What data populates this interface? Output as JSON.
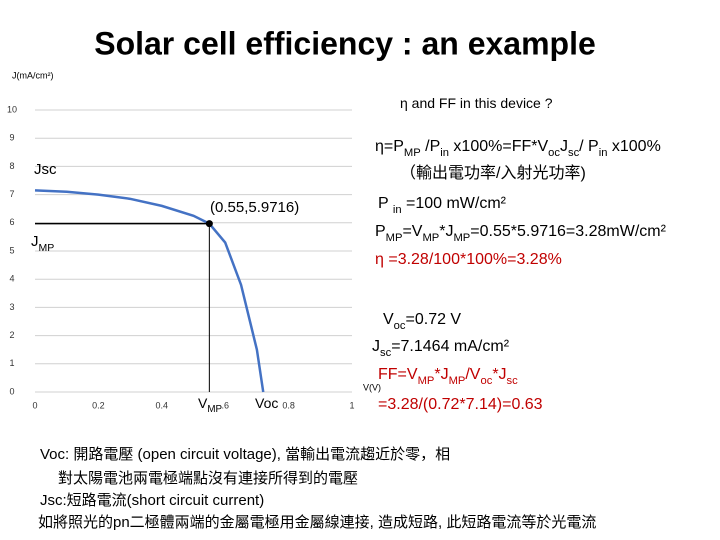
{
  "title": "Solar cell efficiency : an example",
  "chart_data": {
    "type": "line",
    "y_label": "J(mA/cm²)",
    "x_label": "V(V)",
    "xlim": [
      0,
      1
    ],
    "ylim": [
      0,
      10
    ],
    "xticks": [
      0,
      0.2,
      0.4,
      {
        "value": 0.6,
        "label": ".6"
      },
      {
        "value": 0.8,
        "label": "0.8"
      },
      1
    ],
    "yticks": [
      0,
      1,
      2,
      3,
      4,
      5,
      6,
      7,
      8,
      9,
      10
    ],
    "grid": true,
    "series": [
      {
        "color": "#4472c4",
        "x": [
          0,
          0.1,
          0.2,
          0.3,
          0.4,
          0.5,
          0.55,
          0.6,
          0.65,
          0.7,
          0.72
        ],
        "values": [
          7.15,
          7.1,
          7.0,
          6.85,
          6.6,
          6.25,
          5.97,
          5.3,
          3.8,
          1.5,
          0
        ]
      }
    ],
    "point": {
      "x": 0.55,
      "y": 5.9716,
      "label": "(0.55,5.9716)"
    },
    "annotations": {
      "jsc": [
        {
          "text": "Jsc"
        }
      ],
      "jmp": [
        {
          "text": "J"
        },
        {
          "text": "MP",
          "sub": true
        }
      ],
      "vmp": [
        {
          "text": "V"
        },
        {
          "text": "MP",
          "sub": true
        }
      ],
      "voc": [
        {
          "text": "Voc"
        }
      ]
    }
  },
  "text_block": {
    "lines": [
      {
        "color": "#000000",
        "segments": [
          {
            "text": "η and FF in this device ?"
          }
        ]
      },
      {
        "color": "#000000",
        "segments": [
          {
            "text": "η=P"
          },
          {
            "text": "MP",
            "sub": true
          },
          {
            "text": " /P"
          },
          {
            "text": "in",
            "sub": true
          },
          {
            "text": " x100%=FF*V"
          },
          {
            "text": "oc",
            "sub": true
          },
          {
            "text": "J"
          },
          {
            "text": "sc",
            "sub": true
          },
          {
            "text": "/ P"
          },
          {
            "text": "in",
            "sub": true
          },
          {
            "text": " x100%"
          }
        ]
      },
      {
        "color": "#000000",
        "segments": [
          {
            "text": "（輸出電功率/入射光功率)"
          }
        ]
      },
      {
        "color": "#000000",
        "segments": [
          {
            "text": "P "
          },
          {
            "text": "in",
            "sub": true
          },
          {
            "text": " =100 mW/cm²"
          }
        ]
      },
      {
        "color": "#000000",
        "segments": [
          {
            "text": "P"
          },
          {
            "text": "MP",
            "sub": true
          },
          {
            "text": "=V"
          },
          {
            "text": "MP",
            "sub": true
          },
          {
            "text": "*J"
          },
          {
            "text": "MP",
            "sub": true
          },
          {
            "text": "=0.55*5.9716=3.28mW/cm²"
          }
        ]
      },
      {
        "color": "#c00000",
        "segments": [
          {
            "text": "η =3.28/100*100%=3.28%"
          }
        ]
      },
      {
        "color": "#000000",
        "segments": [
          {
            "text": "V"
          },
          {
            "text": "oc",
            "sub": true
          },
          {
            "text": "=0.72 V"
          }
        ]
      },
      {
        "color": "#000000",
        "segments": [
          {
            "text": "J"
          },
          {
            "text": "sc",
            "sub": true
          },
          {
            "text": "=7.1464 mA/cm²"
          }
        ]
      },
      {
        "color": "#c00000",
        "segments": [
          {
            "text": "FF=V"
          },
          {
            "text": "MP",
            "sub": true
          },
          {
            "text": "*J"
          },
          {
            "text": "MP",
            "sub": true
          },
          {
            "text": "/V"
          },
          {
            "text": "oc",
            "sub": true
          },
          {
            "text": "*J"
          },
          {
            "text": "sc",
            "sub": true
          }
        ]
      },
      {
        "color": "#c00000",
        "segments": [
          {
            "text": "=3.28/(0.72*7.14)=0.63"
          }
        ]
      }
    ]
  },
  "notes": [
    "Voc: 開路電壓 (open circuit voltage), 當輸出電流趨近於零，相",
    "對太陽電池兩電極端點沒有連接所得到的電壓",
    "Jsc:短路電流(short circuit current)",
    "如將照光的pn二極體兩端的金屬電極用金屬線連接, 造成短路, 此短路電流等於光電流"
  ]
}
